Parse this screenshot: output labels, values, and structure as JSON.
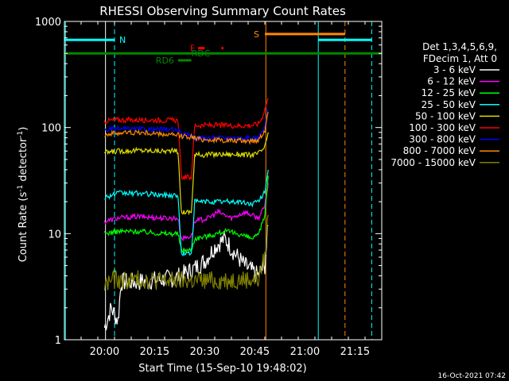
{
  "chart_data": {
    "type": "line",
    "title": "RHESSI Observing Summary Count Rates",
    "xlabel": "Start Time (15-Sep-10 19:48:02)",
    "ylabel": "Count Rate (s",
    "ylabel_sup1": "-1",
    "ylabel_mid": " detector",
    "ylabel_sup2": "-1",
    "ylabel_end": ")",
    "yscale": "log",
    "ylim": [
      1,
      1000
    ],
    "xlim_minutes_after_start": [
      0,
      95
    ],
    "x_ticks": [
      {
        "label": "20:00",
        "t": 12
      },
      {
        "label": "20:15",
        "t": 27
      },
      {
        "label": "20:30",
        "t": 42
      },
      {
        "label": "20:45",
        "t": 57
      },
      {
        "label": "21:00",
        "t": 72
      },
      {
        "label": "21:15",
        "t": 87
      }
    ],
    "y_ticks": [
      {
        "label": "1",
        "v": 1
      },
      {
        "label": "10",
        "v": 10
      },
      {
        "label": "100",
        "v": 100
      },
      {
        "label": "1000",
        "v": 1000
      }
    ],
    "legend_header": [
      "Det 1,3,4,5,6,9,",
      "FDecim 1, Att 0"
    ],
    "legend_placement": "right",
    "series": [
      {
        "name": "3 - 6 keV",
        "color": "#ffffff",
        "points": [
          [
            12,
            1.3
          ],
          [
            13,
            1.6
          ],
          [
            14,
            2.0
          ],
          [
            16,
            1.5
          ],
          [
            17,
            3.5
          ],
          [
            22,
            3.5
          ],
          [
            25,
            3.6
          ],
          [
            33,
            3.8
          ],
          [
            38,
            4.5
          ],
          [
            42,
            5.5
          ],
          [
            45,
            7.5
          ],
          [
            48,
            9.0
          ],
          [
            51,
            6.5
          ],
          [
            54,
            5.0
          ],
          [
            58,
            4.0
          ],
          [
            60,
            5.0
          ],
          [
            61,
            12.0
          ]
        ]
      },
      {
        "name": "6 - 12 keV",
        "color": "#ff00ff",
        "points": [
          [
            12,
            13
          ],
          [
            16,
            14
          ],
          [
            22,
            14.5
          ],
          [
            30,
            14
          ],
          [
            34,
            14
          ],
          [
            35,
            9
          ],
          [
            38,
            9.5
          ],
          [
            39,
            13
          ],
          [
            43,
            14
          ],
          [
            46,
            16
          ],
          [
            50,
            14
          ],
          [
            54,
            16
          ],
          [
            58,
            14
          ],
          [
            60,
            18
          ],
          [
            61,
            30
          ]
        ]
      },
      {
        "name": "12 - 25 keV",
        "color": "#00ff00",
        "points": [
          [
            12,
            10
          ],
          [
            16,
            10.5
          ],
          [
            22,
            10.5
          ],
          [
            30,
            10
          ],
          [
            34,
            10
          ],
          [
            35,
            7
          ],
          [
            38,
            7
          ],
          [
            39,
            9
          ],
          [
            43,
            9.5
          ],
          [
            48,
            10.5
          ],
          [
            52,
            10
          ],
          [
            56,
            9
          ],
          [
            58,
            9.5
          ],
          [
            60,
            15
          ],
          [
            61,
            35
          ]
        ]
      },
      {
        "name": "25 - 50 keV",
        "color": "#00ffff",
        "points": [
          [
            12,
            22
          ],
          [
            16,
            24
          ],
          [
            22,
            24
          ],
          [
            30,
            23
          ],
          [
            34,
            23
          ],
          [
            35,
            6.5
          ],
          [
            38,
            6.5
          ],
          [
            39,
            20
          ],
          [
            45,
            20
          ],
          [
            52,
            20
          ],
          [
            56,
            19
          ],
          [
            58,
            20
          ],
          [
            60,
            25
          ],
          [
            61,
            40
          ]
        ]
      },
      {
        "name": "50 - 100 keV",
        "color": "#dddd00",
        "points": [
          [
            12,
            58
          ],
          [
            16,
            60
          ],
          [
            22,
            61
          ],
          [
            30,
            60
          ],
          [
            34,
            60
          ],
          [
            35,
            16
          ],
          [
            38,
            16
          ],
          [
            39,
            55
          ],
          [
            45,
            56
          ],
          [
            52,
            56
          ],
          [
            56,
            55
          ],
          [
            58,
            57
          ],
          [
            60,
            65
          ],
          [
            61,
            90
          ]
        ]
      },
      {
        "name": "100 - 300 keV",
        "color": "#ff0000",
        "points": [
          [
            12,
            115
          ],
          [
            16,
            118
          ],
          [
            22,
            118
          ],
          [
            30,
            117
          ],
          [
            34,
            117
          ],
          [
            35,
            34
          ],
          [
            38,
            34
          ],
          [
            39,
            105
          ],
          [
            45,
            105
          ],
          [
            52,
            104
          ],
          [
            56,
            105
          ],
          [
            58,
            108
          ],
          [
            59,
            120
          ],
          [
            60,
            150
          ],
          [
            61,
            190
          ]
        ]
      },
      {
        "name": "300 - 800 keV",
        "color": "#0000ff",
        "points": [
          [
            12,
            95
          ],
          [
            16,
            97
          ],
          [
            22,
            96
          ],
          [
            30,
            96
          ],
          [
            34,
            95
          ],
          [
            35,
            86
          ],
          [
            38,
            84
          ],
          [
            39,
            80
          ],
          [
            45,
            80
          ],
          [
            52,
            80
          ],
          [
            56,
            79
          ],
          [
            58,
            80
          ],
          [
            60,
            100
          ],
          [
            61,
            150
          ]
        ]
      },
      {
        "name": "800 - 7000 keV",
        "color": "#ff8800",
        "points": [
          [
            12,
            86
          ],
          [
            16,
            89
          ],
          [
            22,
            90
          ],
          [
            28,
            87
          ],
          [
            34,
            84
          ],
          [
            38,
            82
          ],
          [
            40,
            78
          ],
          [
            45,
            76
          ],
          [
            52,
            75
          ],
          [
            56,
            75
          ],
          [
            58,
            76
          ],
          [
            60,
            95
          ],
          [
            61,
            140
          ]
        ]
      },
      {
        "name": "7000 - 15000 keV",
        "color": "#808000",
        "points": [
          [
            12,
            3.2
          ],
          [
            14,
            3.7
          ],
          [
            17,
            3.6
          ],
          [
            22,
            3.7
          ],
          [
            28,
            3.6
          ],
          [
            34,
            3.6
          ],
          [
            38,
            3.6
          ],
          [
            40,
            3.6
          ],
          [
            45,
            3.6
          ],
          [
            52,
            3.7
          ],
          [
            56,
            3.7
          ],
          [
            58,
            3.7
          ],
          [
            60,
            6
          ],
          [
            61,
            15
          ]
        ]
      }
    ],
    "flags": [
      {
        "label": "N",
        "color": "#00ffff",
        "segments": [
          [
            0,
            15
          ]
        ],
        "level": 670
      },
      {
        "label": "",
        "color": "#00ffff",
        "segments": [
          [
            76,
            92
          ]
        ],
        "level": 670
      },
      {
        "label": "S",
        "color": "#ff8800",
        "segments": [
          [
            60,
            84
          ]
        ],
        "level": 760
      },
      {
        "label": "F",
        "color": "#ff0000",
        "segments": [
          [
            40,
            42
          ],
          [
            47,
            47.6
          ]
        ],
        "level": 560
      },
      {
        "label": "RD6",
        "color": "#008800",
        "segments": [
          [
            34,
            38
          ]
        ],
        "level": 430
      },
      {
        "label": "RDC",
        "color": "#008800",
        "segments": [
          [
            0,
            95
          ]
        ],
        "level": 500
      }
    ],
    "vlines": [
      {
        "t": 12.3,
        "color": "#ffffff",
        "style": "solid"
      },
      {
        "t": 15.0,
        "color": "#00ffff",
        "style": "dashed"
      },
      {
        "t": 60.3,
        "color": "#ff8800",
        "style": "solid"
      },
      {
        "t": 76.0,
        "color": "#00ffff",
        "style": "solid"
      },
      {
        "t": 84.0,
        "color": "#ff8800",
        "style": "dashed"
      },
      {
        "t": 92.0,
        "color": "#00ffff",
        "style": "dashed"
      },
      {
        "t": 0.3,
        "color": "#00ffff",
        "style": "solid"
      }
    ]
  },
  "timestamp": "16-Oct-2021 07:42"
}
